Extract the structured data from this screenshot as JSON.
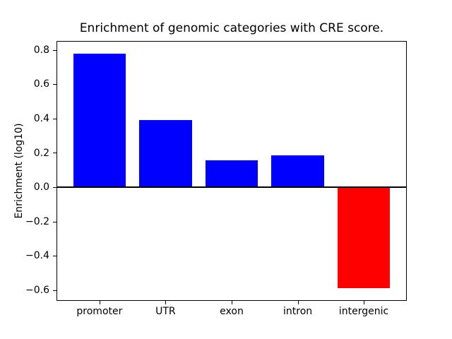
{
  "figure": {
    "background_color": "#ffffff",
    "axis_color": "#000000"
  },
  "chart_data": {
    "type": "bar",
    "title": "Enrichment of genomic categories with CRE score.",
    "xlabel": "",
    "ylabel": "Enrichment (log10)",
    "categories": [
      "promoter",
      "UTR",
      "exon",
      "intron",
      "intergenic"
    ],
    "values": [
      0.78,
      0.39,
      0.155,
      0.185,
      -0.59
    ],
    "positive_color": "#0000ff",
    "negative_color": "#ff0000",
    "bar_colors": [
      "#0000ff",
      "#0000ff",
      "#0000ff",
      "#0000ff",
      "#ff0000"
    ],
    "ylim": [
      -0.6585,
      0.8485
    ],
    "yticks": [
      -0.6,
      -0.4,
      -0.2,
      0.0,
      0.2,
      0.4,
      0.6,
      0.8
    ],
    "ytick_labels": [
      "−0.6",
      "−0.4",
      "−0.2",
      "0.0",
      "0.2",
      "0.4",
      "0.6",
      "0.8"
    ],
    "zero_line": true,
    "grid": false,
    "legend": null
  }
}
